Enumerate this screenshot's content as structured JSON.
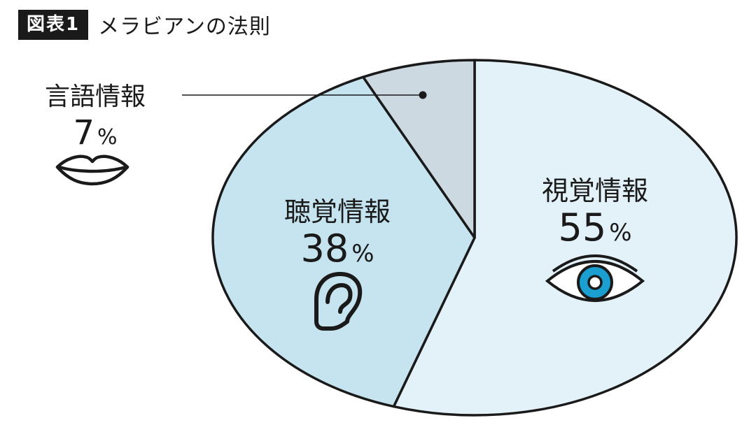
{
  "header": {
    "badge": "図表1",
    "title": "メラビアンの法則"
  },
  "chart_data": {
    "type": "pie",
    "title": "メラビアンの法則",
    "categories": [
      "視覚情報",
      "聴覚情報",
      "言語情報"
    ],
    "values": [
      55,
      38,
      7
    ],
    "value_labels": [
      "55%",
      "38%",
      "7%"
    ],
    "number_labels": [
      "55",
      "38",
      "7"
    ],
    "percent_sign": "%",
    "icons": [
      "eye-icon",
      "ear-icon",
      "lips-icon"
    ],
    "colors": [
      "#e3f1f8",
      "#c6e4ef",
      "#ccd9e1"
    ],
    "start_angle_deg": 0,
    "direction": "clockwise",
    "legend": "none"
  },
  "colors": {
    "outline": "#1a1a1a",
    "eye_iris": "#1a9fd0"
  }
}
